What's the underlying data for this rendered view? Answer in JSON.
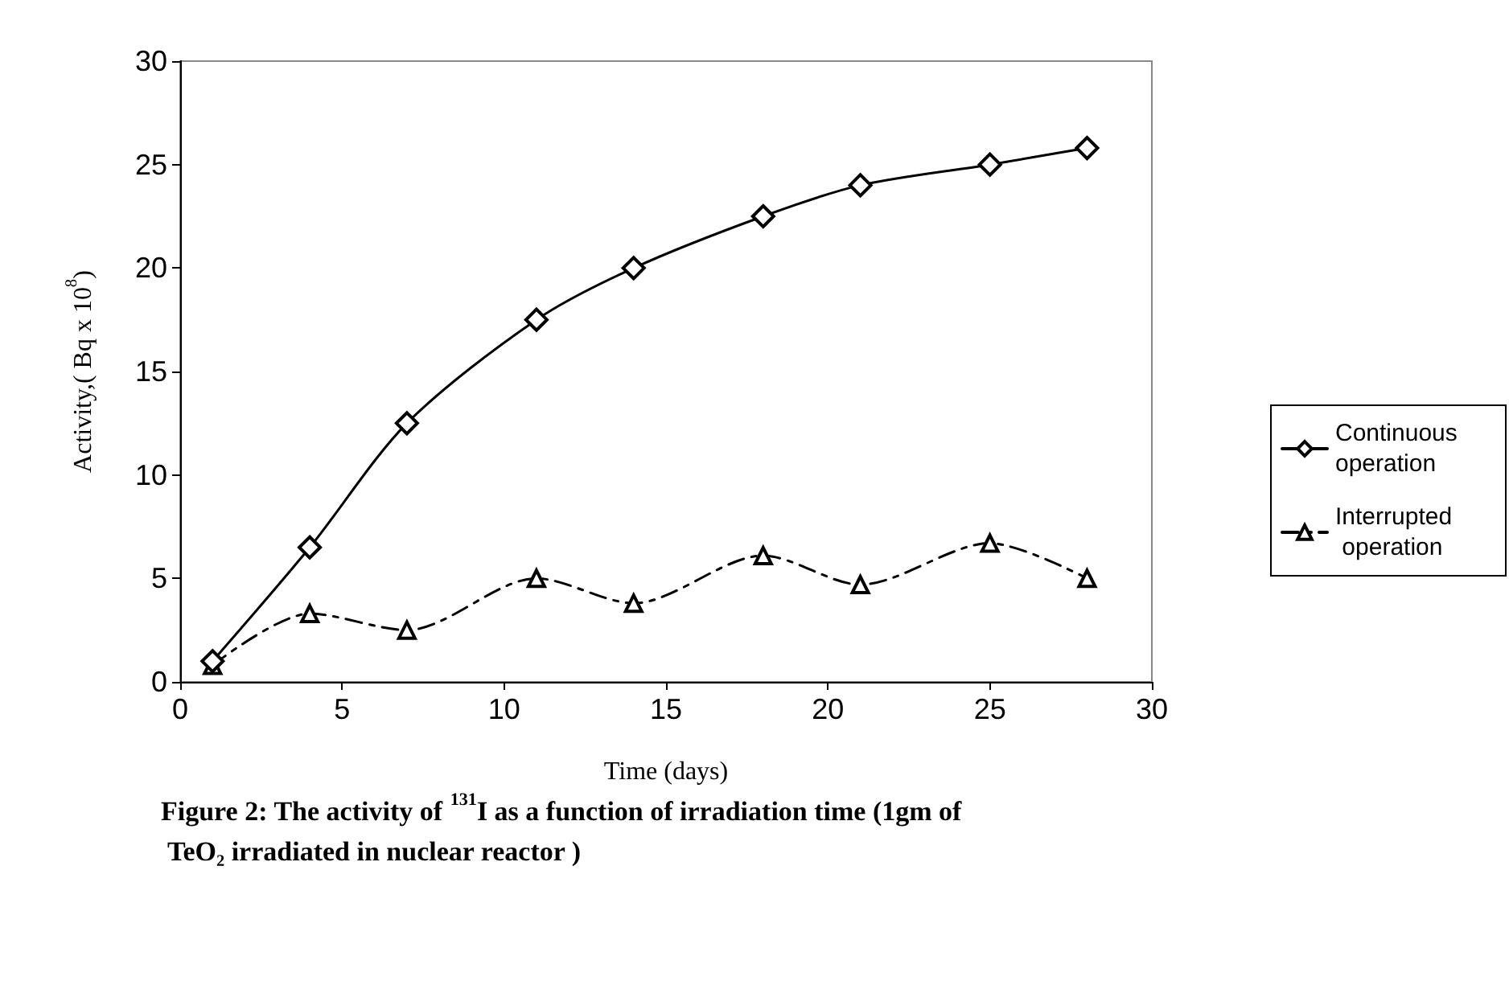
{
  "chart_data": {
    "type": "line",
    "xlabel": "Time (days)",
    "ylabel": "Activity,( Bq x 10$^{8}$)",
    "x": [
      1,
      4,
      7,
      11,
      14,
      18,
      21,
      25,
      28
    ],
    "series": [
      {
        "name": "Continuous operation",
        "color": "#000000",
        "marker": "diamond",
        "line_style": "solid",
        "values": [
          1,
          6.5,
          12.5,
          17.5,
          20,
          22.5,
          24,
          25,
          25.8
        ]
      },
      {
        "name": "Interrupted operation",
        "color": "#000000",
        "marker": "triangle",
        "line_style": "dashed",
        "values": [
          0.8,
          3.3,
          2.5,
          5,
          3.8,
          6.1,
          4.7,
          6.7,
          5
        ]
      }
    ],
    "xlim": [
      0,
      30
    ],
    "xticks": [
      0,
      5,
      10,
      15,
      20,
      25,
      30
    ],
    "ylim": [
      0,
      30
    ],
    "yticks": [
      0,
      5,
      10,
      15,
      20,
      25,
      30
    ],
    "grid": false,
    "legend": "right",
    "annotations": [
      "Figure 2: The activity of $^{131}$I as a function of irradiation time (1gm of TeO₂ irradiated in nuclear reactor )"
    ]
  }
}
